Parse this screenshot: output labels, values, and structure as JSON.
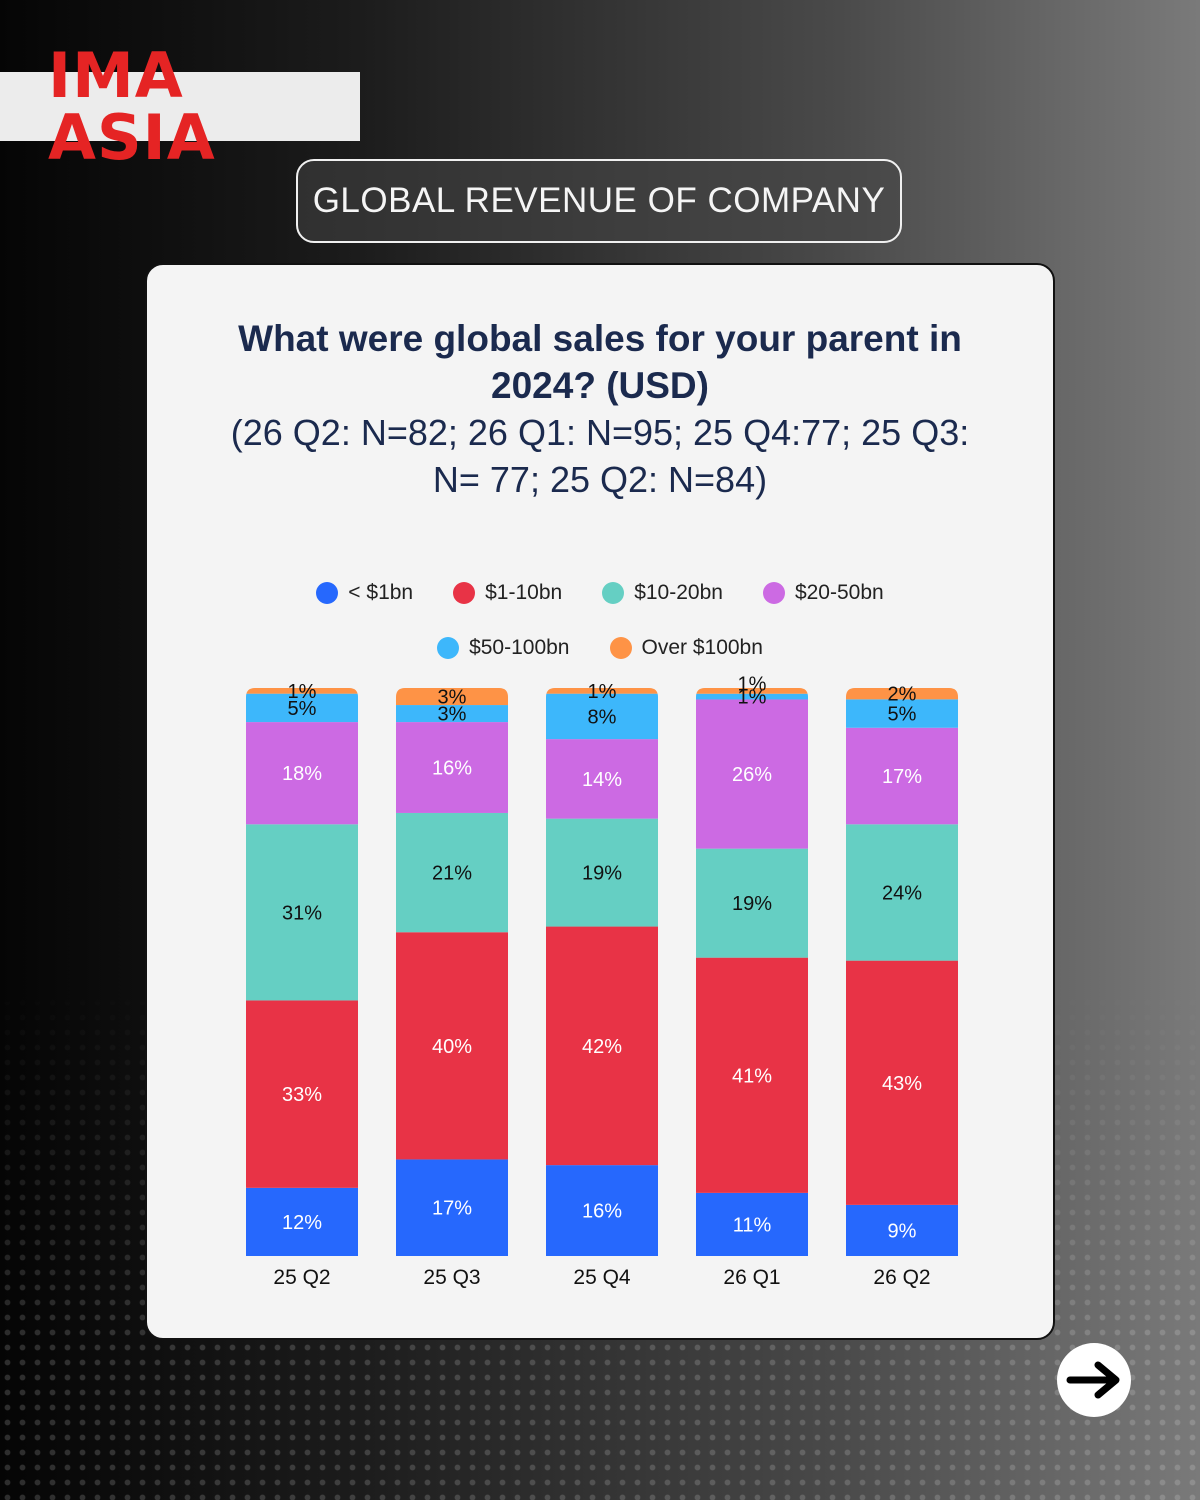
{
  "brand": {
    "logo_text": "IMA ASIA"
  },
  "header": {
    "title": "GLOBAL REVENUE OF COMPANY"
  },
  "question": {
    "title": "What were global sales for your parent in 2024? (USD)",
    "subtitle": "(26 Q2: N=82; 26 Q1: N=95; 25 Q4:77; 25 Q3: N= 77; 25 Q2: N=84)"
  },
  "nav": {
    "next_icon": "arrow-right-icon"
  },
  "chart_data": {
    "type": "bar",
    "stacked": true,
    "categories": [
      "25 Q2",
      "25 Q3",
      "25 Q4",
      "26 Q1",
      "26 Q2"
    ],
    "series": [
      {
        "name": "< $1bn",
        "color": "#2668fd",
        "values": [
          12,
          17,
          16,
          11,
          9
        ]
      },
      {
        "name": "$1-10bn",
        "color": "#e83346",
        "values": [
          33,
          40,
          42,
          41,
          43
        ]
      },
      {
        "name": "$10-20bn",
        "color": "#65cfc3",
        "values": [
          31,
          21,
          19,
          19,
          24
        ]
      },
      {
        "name": "$20-50bn",
        "color": "#cc6ae3",
        "values": [
          18,
          16,
          14,
          26,
          17
        ]
      },
      {
        "name": "$50-100bn",
        "color": "#3db7fb",
        "values": [
          5,
          3,
          8,
          1,
          5
        ]
      },
      {
        "name": "Over $100bn",
        "color": "#fe9346",
        "values": [
          1,
          3,
          1,
          1,
          2
        ]
      }
    ],
    "value_suffix": "%",
    "legend_position": "top",
    "grid": false
  }
}
